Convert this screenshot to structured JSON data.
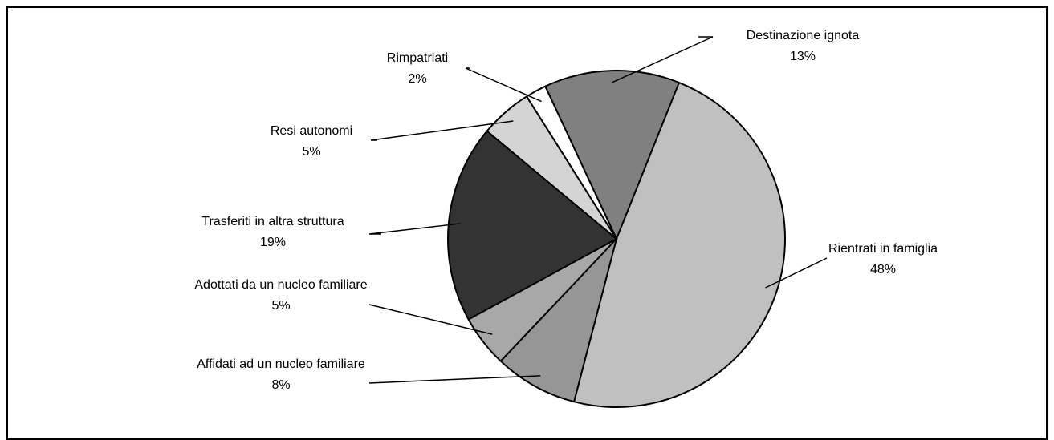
{
  "chart_data": {
    "type": "pie",
    "categories": [
      "Destinazione ignota",
      "Rientrati in famiglia",
      "Affidati ad un nucleo familiare",
      "Adottati da un nucleo familiare",
      "Trasferiti in altra struttura",
      "Resi autonomi",
      "Rimpatriati"
    ],
    "values": [
      13,
      48,
      8,
      5,
      19,
      5,
      2
    ],
    "value_labels": [
      "13%",
      "48%",
      "8%",
      "5%",
      "19%",
      "5%",
      "2%"
    ],
    "colors": [
      "#808080",
      "#c0c0c0",
      "#969696",
      "#a8a8a8",
      "#333333",
      "#d4d4d4",
      "#ffffff"
    ]
  }
}
